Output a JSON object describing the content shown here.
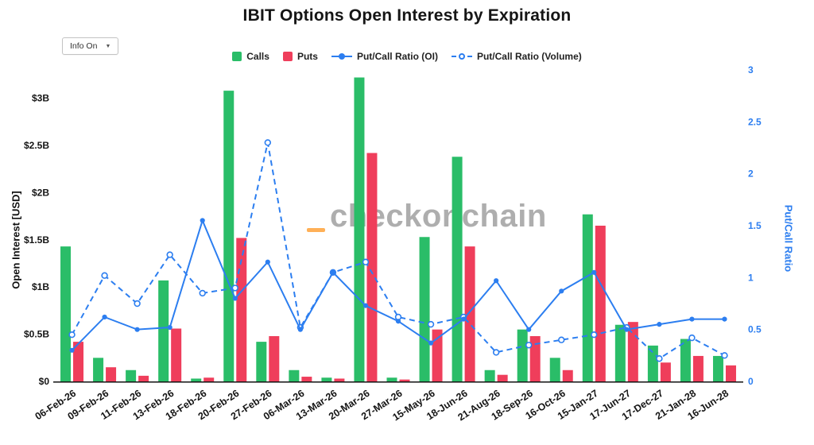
{
  "title": "IBIT Options Open Interest by Expiration",
  "controls": {
    "info_dropdown_label": "Info On",
    "dropdown_arrow": "▼"
  },
  "legend": [
    {
      "label": "Calls",
      "type": "square",
      "color": "#2abd68"
    },
    {
      "label": "Puts",
      "type": "square",
      "color": "#ef3e5b"
    },
    {
      "label": "Put/Call Ratio (OI)",
      "type": "line",
      "color": "#2c7ef0"
    },
    {
      "label": "Put/Call Ratio (Volume)",
      "type": "dashed-line",
      "color": "#2c7ef0"
    }
  ],
  "watermark": {
    "text": "checkonchain",
    "accent_color": "#ffa33a"
  },
  "chart_data": {
    "type": "bar",
    "title": "IBIT Options Open Interest by Expiration",
    "categories": [
      "06-Feb-26",
      "09-Feb-26",
      "11-Feb-26",
      "13-Feb-26",
      "18-Feb-26",
      "20-Feb-26",
      "27-Feb-26",
      "06-Mar-26",
      "13-Mar-26",
      "20-Mar-26",
      "27-Mar-26",
      "15-May-26",
      "18-Jun-26",
      "21-Aug-26",
      "18-Sep-26",
      "16-Oct-26",
      "15-Jan-27",
      "17-Jun-27",
      "17-Dec-27",
      "21-Jan-28",
      "16-Jun-28"
    ],
    "series": [
      {
        "name": "Calls",
        "type": "bar",
        "axis": "left",
        "units": "USD billions",
        "color": "#2abd68",
        "values": [
          1.43,
          0.25,
          0.12,
          1.07,
          0.03,
          3.08,
          0.42,
          0.12,
          0.04,
          3.22,
          0.04,
          1.53,
          2.38,
          0.12,
          0.55,
          0.25,
          1.77,
          0.6,
          0.38,
          0.45,
          0.27
        ]
      },
      {
        "name": "Puts",
        "type": "bar",
        "axis": "left",
        "units": "USD billions",
        "color": "#ef3e5b",
        "values": [
          0.42,
          0.15,
          0.06,
          0.56,
          0.04,
          1.52,
          0.48,
          0.05,
          0.03,
          2.42,
          0.02,
          0.55,
          1.43,
          0.07,
          0.48,
          0.12,
          1.65,
          0.63,
          0.2,
          0.27,
          0.17
        ]
      },
      {
        "name": "Put/Call Ratio (OI)",
        "type": "line",
        "style": "solid",
        "axis": "right",
        "color": "#2c7ef0",
        "values": [
          0.3,
          0.62,
          0.5,
          0.52,
          1.55,
          0.8,
          1.15,
          0.5,
          1.05,
          0.73,
          0.58,
          0.37,
          0.6,
          0.97,
          0.5,
          0.87,
          1.05,
          0.5,
          0.55,
          0.6,
          0.6
        ]
      },
      {
        "name": "Put/Call Ratio (Volume)",
        "type": "line",
        "style": "dashed",
        "axis": "right",
        "color": "#2c7ef0",
        "values": [
          0.45,
          1.02,
          0.75,
          1.22,
          0.85,
          0.9,
          2.3,
          0.52,
          1.05,
          1.15,
          0.62,
          0.55,
          0.62,
          0.28,
          0.35,
          0.4,
          0.45,
          0.52,
          0.22,
          0.42,
          0.25
        ]
      }
    ],
    "left_axis": {
      "title": "Open Interest [USD]",
      "max": 3.3,
      "ticks": [
        0,
        0.5,
        1,
        1.5,
        2,
        2.5,
        3
      ],
      "tick_labels": [
        "$0",
        "$0.5B",
        "$1B",
        "$1.5B",
        "$2B",
        "$2.5B",
        "$3B"
      ]
    },
    "right_axis": {
      "title": "Put/Call Ratio",
      "max": 3.0,
      "color": "#2c7ef0",
      "ticks": [
        0,
        0.5,
        1,
        1.5,
        2,
        2.5,
        3
      ],
      "tick_labels": [
        "0",
        "0.5",
        "1",
        "1.5",
        "2",
        "2.5",
        "3"
      ]
    },
    "grid": false,
    "legend_position": "top-center"
  }
}
